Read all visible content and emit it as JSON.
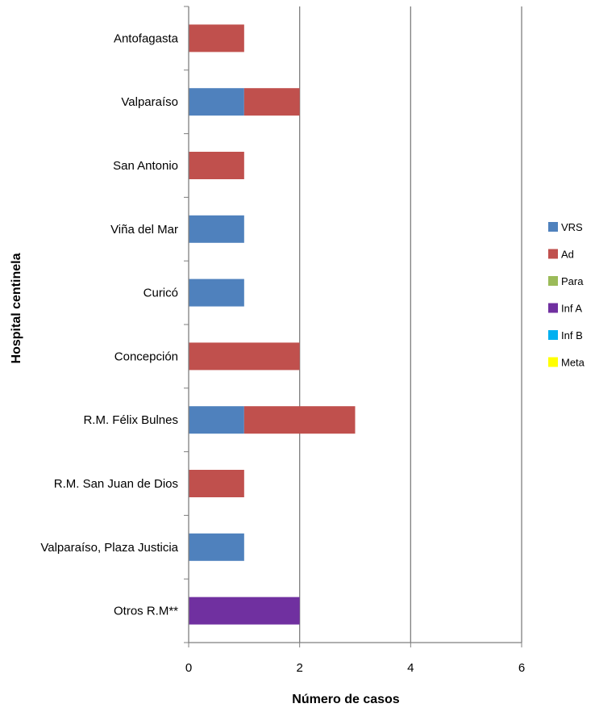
{
  "chart_data": {
    "type": "bar",
    "orientation": "horizontal",
    "stacked": true,
    "xlabel": "Número de casos",
    "ylabel": "Hospital  centinela",
    "xlim": [
      0,
      6
    ],
    "xticks": [
      "0",
      "2",
      "4",
      "6"
    ],
    "grid": "vertical",
    "legend_position": "right",
    "categories": [
      "Antofagasta",
      "Valparaíso",
      "San Antonio",
      "Viña del Mar",
      "Curicó",
      "Concepción",
      "R.M. Félix Bulnes",
      "R.M. San Juan de Dios",
      "Valparaíso, Plaza Justicia",
      "Otros R.M**"
    ],
    "series": [
      {
        "name": "VRS",
        "color": "#4F81BD",
        "values": [
          0,
          1,
          0,
          1,
          1,
          0,
          1,
          0,
          1,
          0
        ]
      },
      {
        "name": "Ad",
        "color": "#C0504D",
        "values": [
          1,
          1,
          1,
          0,
          0,
          2,
          2,
          1,
          0,
          0
        ]
      },
      {
        "name": "Para",
        "color": "#9BBB59",
        "values": [
          0,
          0,
          0,
          0,
          0,
          0,
          0,
          0,
          0,
          0
        ]
      },
      {
        "name": "Inf A",
        "color": "#7030A0",
        "values": [
          0,
          0,
          0,
          0,
          0,
          0,
          0,
          0,
          0,
          2
        ]
      },
      {
        "name": "Inf B",
        "color": "#00B0F0",
        "values": [
          0,
          0,
          0,
          0,
          0,
          0,
          0,
          0,
          0,
          0
        ]
      },
      {
        "name": "Meta",
        "color": "#FFFF00",
        "values": [
          0,
          0,
          0,
          0,
          0,
          0,
          0,
          0,
          0,
          0
        ]
      }
    ]
  }
}
